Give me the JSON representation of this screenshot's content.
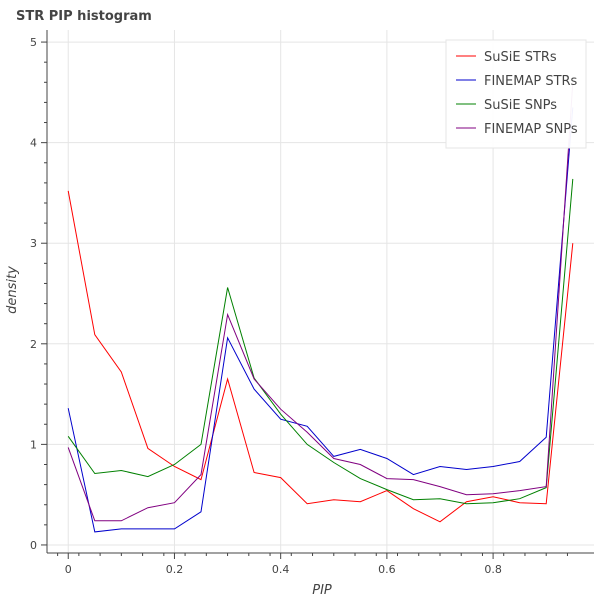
{
  "chart_data": {
    "type": "line",
    "title": "STR PIP histogram",
    "xlabel": "PIP",
    "ylabel": "density",
    "xlim": [
      -0.04,
      0.99
    ],
    "ylim": [
      -0.08,
      5.12
    ],
    "x_ticks": [
      0,
      0.2,
      0.4,
      0.6,
      0.8
    ],
    "x_tick_labels": [
      "0",
      "0.2",
      "0.4",
      "0.6",
      "0.8"
    ],
    "y_ticks": [
      0,
      1,
      2,
      3,
      4,
      5
    ],
    "y_tick_labels": [
      "0",
      "1",
      "2",
      "3",
      "4",
      "5"
    ],
    "grid": true,
    "legend_position": "top-right",
    "x": [
      0,
      0.05,
      0.1,
      0.15,
      0.2,
      0.25,
      0.3,
      0.35,
      0.4,
      0.45,
      0.5,
      0.55,
      0.6,
      0.65,
      0.7,
      0.75,
      0.8,
      0.85,
      0.9,
      0.95
    ],
    "series": [
      {
        "name": "SuSiE STRs",
        "color": "#ff0000",
        "values": [
          3.52,
          2.09,
          1.72,
          0.96,
          0.78,
          0.65,
          1.65,
          0.72,
          0.67,
          0.41,
          0.45,
          0.43,
          0.54,
          0.36,
          0.23,
          0.43,
          0.48,
          0.42,
          0.41,
          3.0
        ]
      },
      {
        "name": "FINEMAP STRs",
        "color": "#0000cc",
        "values": [
          1.36,
          0.13,
          0.16,
          0.16,
          0.16,
          0.33,
          2.06,
          1.55,
          1.25,
          1.18,
          0.88,
          0.95,
          0.86,
          0.7,
          0.78,
          0.75,
          0.78,
          0.83,
          1.07,
          4.35
        ]
      },
      {
        "name": "SuSiE SNPs",
        "color": "#008000",
        "values": [
          1.08,
          0.71,
          0.74,
          0.68,
          0.8,
          1.0,
          2.56,
          1.66,
          1.3,
          1.0,
          0.82,
          0.66,
          0.55,
          0.45,
          0.46,
          0.41,
          0.42,
          0.46,
          0.57,
          3.64
        ]
      },
      {
        "name": "FINEMAP SNPs",
        "color": "#800080",
        "values": [
          0.97,
          0.24,
          0.24,
          0.37,
          0.42,
          0.7,
          2.29,
          1.65,
          1.35,
          1.12,
          0.86,
          0.8,
          0.66,
          0.65,
          0.58,
          0.5,
          0.51,
          0.54,
          0.58,
          4.6
        ]
      }
    ]
  }
}
